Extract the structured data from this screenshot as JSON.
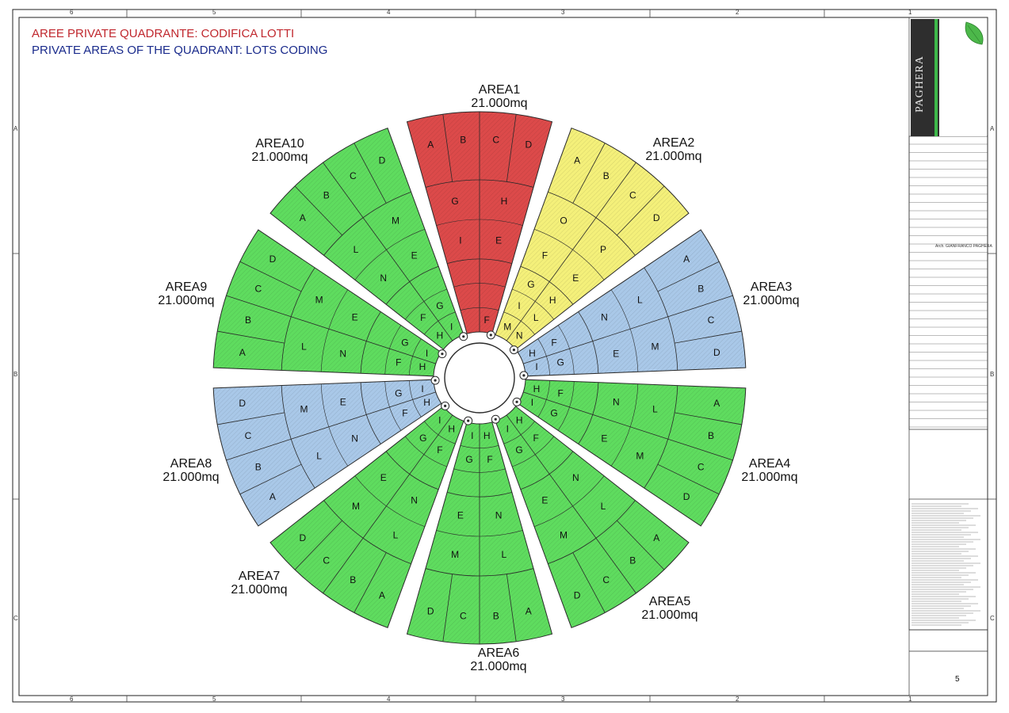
{
  "drawing": {
    "title_it": "AREE PRIVATE QUADRANTE: CODIFICA LOTTI",
    "title_en": "PRIVATE AREAS OF THE QUADRANT: LOTS CODING",
    "colors": {
      "red": "#dc4a4a",
      "yellow": "#f4f07a",
      "blue": "#a9c8e8",
      "green": "#5fdc5f",
      "outline": "#2a2a2a",
      "title_red": "#c0282e",
      "title_blue": "#1a2b8c"
    },
    "areas": [
      {
        "name": "AREA1",
        "size": "21.000mq",
        "color": "red",
        "lots": [
          "A",
          "B",
          "C",
          "D",
          "E",
          "I",
          "H",
          "G",
          "F"
        ]
      },
      {
        "name": "AREA2",
        "size": "21.000mq",
        "color": "yellow",
        "lots": [
          "A",
          "B",
          "C",
          "D",
          "E",
          "F",
          "P",
          "O",
          "N",
          "M",
          "L",
          "I",
          "H",
          "G"
        ]
      },
      {
        "name": "AREA3",
        "size": "21.000mq",
        "color": "blue",
        "lots": [
          "A",
          "B",
          "C",
          "D",
          "E",
          "N",
          "M",
          "L",
          "I",
          "H",
          "G",
          "F"
        ]
      },
      {
        "name": "AREA4",
        "size": "21.000mq",
        "color": "green",
        "lots": [
          "A",
          "B",
          "C",
          "D",
          "E",
          "N",
          "M",
          "L",
          "I",
          "H",
          "G",
          "F"
        ]
      },
      {
        "name": "AREA5",
        "size": "21.000mq",
        "color": "green",
        "lots": [
          "A",
          "B",
          "C",
          "D",
          "E",
          "N",
          "M",
          "L",
          "I",
          "H",
          "G",
          "F"
        ]
      },
      {
        "name": "AREA6",
        "size": "21.000mq",
        "color": "green",
        "lots": [
          "A",
          "B",
          "C",
          "D",
          "E",
          "N",
          "M",
          "L",
          "I",
          "H",
          "G",
          "F"
        ]
      },
      {
        "name": "AREA7",
        "size": "21.000mq",
        "color": "green",
        "lots": [
          "A",
          "B",
          "C",
          "D",
          "E",
          "N",
          "M",
          "L",
          "I",
          "H",
          "G",
          "F"
        ]
      },
      {
        "name": "AREA8",
        "size": "21.000mq",
        "color": "blue",
        "lots": [
          "A",
          "B",
          "C",
          "D",
          "E",
          "N",
          "M",
          "L",
          "I",
          "H",
          "G",
          "F"
        ]
      },
      {
        "name": "AREA9",
        "size": "21.000mq",
        "color": "green",
        "lots": [
          "A",
          "B",
          "C",
          "D",
          "E",
          "N",
          "M",
          "L",
          "I",
          "H",
          "G",
          "F"
        ]
      },
      {
        "name": "AREA10",
        "size": "21.000mq",
        "color": "green",
        "lots": [
          "A",
          "B",
          "C",
          "D",
          "E",
          "N",
          "M",
          "L",
          "I",
          "H",
          "G",
          "F"
        ]
      }
    ],
    "grid_columns_top": [
      "6",
      "5",
      "4",
      "3",
      "2",
      "1"
    ],
    "grid_rows_side": [
      "A",
      "B",
      "C"
    ]
  },
  "title_block": {
    "logo_text": "PAGHERA",
    "designer": "Arch. GIANFRANCO PAGHERA",
    "page_number": "5"
  }
}
